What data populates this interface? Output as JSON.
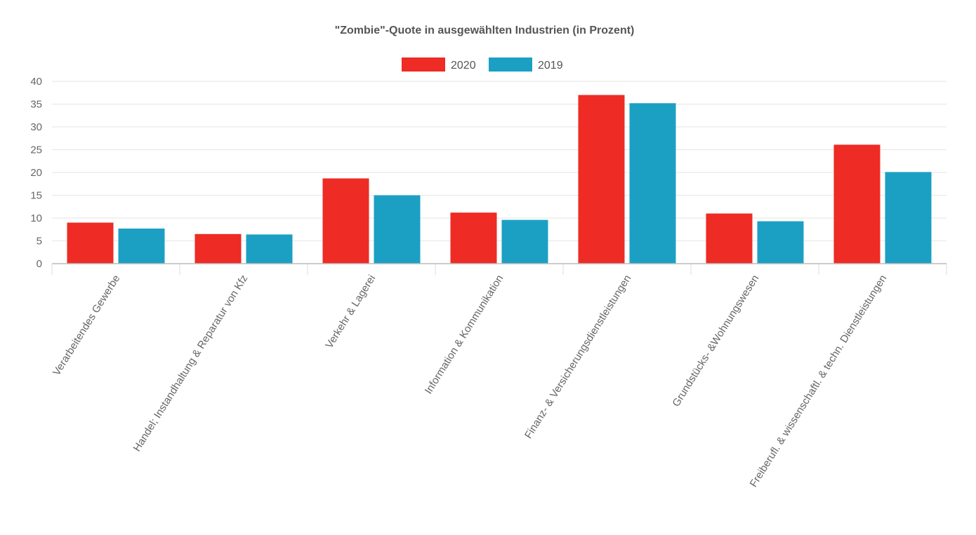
{
  "chart_data": {
    "type": "bar",
    "title": "\"Zombie\"-Quote in ausgewählten Industrien (in Prozent)",
    "xlabel": "",
    "ylabel": "",
    "ylim": [
      0,
      40
    ],
    "yticks": [
      0,
      5,
      10,
      15,
      20,
      25,
      30,
      35,
      40
    ],
    "grid": true,
    "legend_position": "top-center",
    "categories": [
      "Verarbeitendes Gewerbe",
      "Handel; Instandhaltung & Reparatur von Kfz",
      "Verkehr & Lagerei",
      "Information & Kommunikation",
      "Finanz- & Versicherungsdienstleistungen",
      "Grundstücks- &Wohnungswesen",
      "Freiberufl. & wissenschaftl. & techn. Dienstleistungen"
    ],
    "series": [
      {
        "name": "2020",
        "color": "#ee2b24",
        "values": [
          9.0,
          6.5,
          18.7,
          11.2,
          37.0,
          11.0,
          26.1
        ]
      },
      {
        "name": "2019",
        "color": "#1ba0c4",
        "values": [
          7.7,
          6.4,
          15.0,
          9.6,
          35.2,
          9.3,
          20.1
        ]
      }
    ]
  }
}
